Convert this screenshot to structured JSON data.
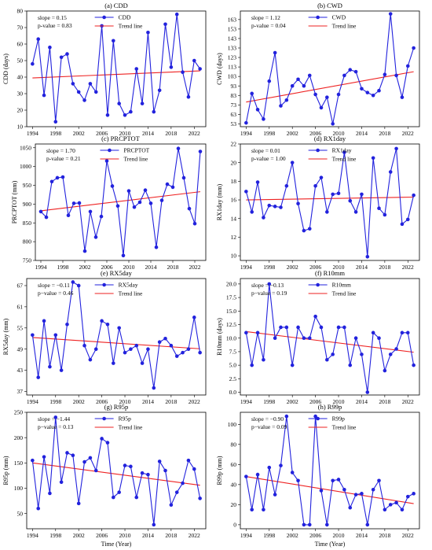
{
  "figure": {
    "x_axis_title": "Time (Year)"
  },
  "colors": {
    "series": "#2222dd",
    "trend": "#ee2222"
  },
  "chart_data": [
    {
      "type": "line",
      "panel": "(a) CDD",
      "ylabel": "CDD (days)",
      "xlabel": "",
      "series_name": "CDD",
      "trend_name": "Trend line",
      "slope_text": "slope = 0.15",
      "p_text": "p-value = 0.83",
      "xlim": [
        1993,
        2024
      ],
      "ylim": [
        10,
        80
      ],
      "xticks": [
        1994,
        1998,
        2002,
        2006,
        2010,
        2014,
        2018,
        2022
      ],
      "yticks": [
        10,
        20,
        30,
        40,
        50,
        60,
        70,
        80
      ],
      "x": [
        1994,
        1995,
        1996,
        1997,
        1998,
        1999,
        2000,
        2001,
        2002,
        2003,
        2004,
        2005,
        2006,
        2007,
        2008,
        2009,
        2010,
        2011,
        2012,
        2013,
        2014,
        2015,
        2016,
        2017,
        2018,
        2019,
        2020,
        2021,
        2022,
        2023
      ],
      "values": [
        48,
        63,
        29,
        58,
        13,
        52,
        54,
        36,
        31,
        26,
        36,
        31,
        71,
        17,
        62,
        24,
        17,
        19,
        45,
        24,
        67,
        19,
        32,
        72,
        46,
        78,
        43,
        28,
        50,
        45
      ],
      "trend": [
        39.5,
        43.8
      ]
    },
    {
      "type": "line",
      "panel": "(b) CWD",
      "ylabel": "CWD (days)",
      "xlabel": "",
      "series_name": "CWD",
      "trend_name": "Trend line",
      "slope_text": "slope = 1.12",
      "p_text": "p-value = 0.04",
      "xlim": [
        1993,
        2024
      ],
      "ylim": [
        50,
        172
      ],
      "xticks": [
        1994,
        1998,
        2002,
        2006,
        2010,
        2014,
        2018,
        2022
      ],
      "yticks": [
        53,
        63,
        73,
        83,
        93,
        103,
        113,
        123,
        133,
        143,
        153,
        163
      ],
      "x": [
        1994,
        1995,
        1996,
        1997,
        1998,
        1999,
        2000,
        2001,
        2002,
        2003,
        2004,
        2005,
        2006,
        2007,
        2008,
        2009,
        2010,
        2011,
        2012,
        2013,
        2014,
        2015,
        2016,
        2017,
        2018,
        2019,
        2020,
        2021,
        2022,
        2023
      ],
      "values": [
        54,
        85,
        68,
        58,
        98,
        128,
        72,
        78,
        93,
        100,
        93,
        104,
        84,
        70,
        81,
        53,
        84,
        104,
        110,
        108,
        90,
        86,
        83,
        88,
        105,
        169,
        104,
        81,
        114,
        133
      ],
      "trend": [
        76,
        108
      ]
    },
    {
      "type": "line",
      "panel": "(c) PRCPTOT",
      "ylabel": "PRCPTOT (mm)",
      "xlabel": "",
      "series_name": "PRCPTOT",
      "trend_name": "Trend line",
      "slope_text": "slope = 1.70",
      "p_text": "p-value = 0.21",
      "xlim": [
        1993,
        2024
      ],
      "ylim": [
        750,
        1060
      ],
      "xticks": [
        1994,
        1998,
        2002,
        2006,
        2010,
        2014,
        2018,
        2022
      ],
      "yticks": [
        750,
        800,
        850,
        900,
        950,
        1000,
        1050
      ],
      "x": [
        1994,
        1995,
        1996,
        1997,
        1998,
        1999,
        2000,
        2001,
        2002,
        2003,
        2004,
        2005,
        2006,
        2007,
        2008,
        2009,
        2010,
        2011,
        2012,
        2013,
        2014,
        2015,
        2016,
        2017,
        2018,
        2019,
        2020,
        2021,
        2022,
        2023
      ],
      "values": [
        880,
        865,
        960,
        970,
        972,
        870,
        902,
        903,
        775,
        880,
        812,
        867,
        1015,
        948,
        895,
        763,
        935,
        892,
        905,
        937,
        902,
        785,
        910,
        953,
        945,
        1048,
        970,
        888,
        848,
        1040
      ],
      "trend": [
        882,
        933
      ]
    },
    {
      "type": "line",
      "panel": "(d) RX1day",
      "ylabel": "RX1day (mm)",
      "xlabel": "",
      "series_name": "RX1day",
      "trend_name": "Trend line",
      "slope_text": "slope = 0.01",
      "p_text": "p-value = 1.00",
      "xlim": [
        1993,
        2024
      ],
      "ylim": [
        9.5,
        22
      ],
      "xticks": [
        1994,
        1998,
        2002,
        2006,
        2010,
        2014,
        2018,
        2022
      ],
      "yticks": [
        10,
        12,
        14,
        16,
        18,
        20,
        22
      ],
      "x": [
        1994,
        1995,
        1996,
        1997,
        1998,
        1999,
        2000,
        2001,
        2002,
        2003,
        2004,
        2005,
        2006,
        2007,
        2008,
        2009,
        2010,
        2011,
        2012,
        2013,
        2014,
        2015,
        2016,
        2017,
        2018,
        2019,
        2020,
        2021,
        2022,
        2023
      ],
      "values": [
        16.9,
        14.7,
        17.9,
        14.1,
        15.4,
        15.3,
        15.2,
        17.5,
        20.0,
        15.6,
        12.7,
        12.9,
        17.5,
        18.4,
        14.7,
        16.6,
        16.7,
        21.1,
        15.9,
        14.7,
        16.6,
        9.9,
        20.5,
        15.1,
        14.4,
        19.0,
        21.5,
        13.4,
        13.9,
        16.5
      ],
      "trend": [
        16.0,
        16.3
      ]
    },
    {
      "type": "line",
      "panel": "(e) RX5day",
      "ylabel": "RX5day (mm)",
      "xlabel": "",
      "series_name": "RX5day",
      "trend_name": "Trend line",
      "slope_text": "slope = −0.11",
      "p_text": "p−value = 0.46",
      "xlim": [
        1993,
        2024
      ],
      "ylim": [
        36,
        69
      ],
      "xticks": [
        1994,
        1998,
        2002,
        2006,
        2010,
        2014,
        2018,
        2022
      ],
      "yticks": [
        37,
        43,
        49,
        55,
        61,
        67
      ],
      "x": [
        1994,
        1995,
        1996,
        1997,
        1998,
        1999,
        2000,
        2001,
        2002,
        2003,
        2004,
        2005,
        2006,
        2007,
        2008,
        2009,
        2010,
        2011,
        2012,
        2013,
        2014,
        2015,
        2016,
        2017,
        2018,
        2019,
        2020,
        2021,
        2022,
        2023
      ],
      "values": [
        53,
        41,
        57,
        44,
        53,
        43,
        56,
        68,
        67,
        50,
        46,
        49,
        57,
        56,
        45,
        55,
        48,
        49,
        50,
        45,
        49,
        38,
        51,
        52,
        50,
        47,
        48,
        49,
        58,
        48
      ],
      "trend": [
        52.3,
        49.1
      ]
    },
    {
      "type": "line",
      "panel": "(f) R10mm",
      "ylabel": "R10mm (days)",
      "xlabel": "",
      "series_name": "R10mm",
      "trend_name": "Trend line",
      "slope_text": "slope = −0.13",
      "p_text": "p−value = 0.19",
      "xlim": [
        1993,
        2024
      ],
      "ylim": [
        -0.5,
        21
      ],
      "xticks": [
        1994,
        1998,
        2002,
        2006,
        2010,
        2014,
        2018,
        2022
      ],
      "yticks": [
        0.0,
        2.5,
        5.0,
        7.5,
        10.0,
        12.5,
        15.0,
        17.5,
        20.0
      ],
      "ytick_labels": [
        "0.0",
        "2.5",
        "5.0",
        "7.5",
        "10.0",
        "12.5",
        "15.0",
        "17.5",
        "20.0"
      ],
      "x": [
        1994,
        1995,
        1996,
        1997,
        1998,
        1999,
        2000,
        2001,
        2002,
        2003,
        2004,
        2005,
        2006,
        2007,
        2008,
        2009,
        2010,
        2011,
        2012,
        2013,
        2014,
        2015,
        2016,
        2017,
        2018,
        2019,
        2020,
        2021,
        2022,
        2023
      ],
      "values": [
        11,
        5,
        11,
        6,
        20,
        10,
        12,
        12,
        5,
        12,
        10,
        10,
        14,
        12,
        6,
        7,
        12,
        12,
        5,
        10,
        7,
        0,
        11,
        10,
        4,
        7,
        8,
        11,
        11,
        5
      ],
      "trend": [
        11.2,
        7.4
      ]
    },
    {
      "type": "line",
      "panel": "(g) R95p",
      "ylabel": "R95p (mm)",
      "xlabel": "Time (Year)",
      "series_name": "R95p",
      "trend_name": "Trend line",
      "slope_text": "slope = −1.44",
      "p_text": "p−value = 0.13",
      "xlim": [
        1993,
        2024
      ],
      "ylim": [
        20,
        250
      ],
      "xticks": [
        1994,
        1998,
        2002,
        2006,
        2010,
        2014,
        2018,
        2022
      ],
      "yticks": [
        50,
        100,
        150,
        200,
        250
      ],
      "x": [
        1994,
        1995,
        1996,
        1997,
        1998,
        1999,
        2000,
        2001,
        2002,
        2003,
        2004,
        2005,
        2006,
        2007,
        2008,
        2009,
        2010,
        2011,
        2012,
        2013,
        2014,
        2015,
        2016,
        2017,
        2018,
        2019,
        2020,
        2021,
        2022,
        2023
      ],
      "values": [
        155,
        60,
        162,
        90,
        240,
        112,
        170,
        165,
        70,
        152,
        160,
        135,
        198,
        190,
        82,
        92,
        145,
        143,
        82,
        130,
        127,
        28,
        153,
        135,
        67,
        92,
        110,
        155,
        138,
        80
      ],
      "trend": [
        150,
        106
      ]
    },
    {
      "type": "line",
      "panel": "(h) R99p",
      "ylabel": "R99p (mm)",
      "xlabel": "Time (Year)",
      "series_name": "R99p",
      "trend_name": "Trend line",
      "slope_text": "slope = −0.90",
      "p_text": "p−value = 0.09",
      "xlim": [
        1993,
        2024
      ],
      "ylim": [
        -4,
        112
      ],
      "xticks": [
        1994,
        1998,
        2002,
        2006,
        2010,
        2014,
        2018,
        2022
      ],
      "yticks": [
        0,
        20,
        40,
        60,
        80,
        100
      ],
      "x": [
        1994,
        1995,
        1996,
        1997,
        1998,
        1999,
        2000,
        2001,
        2002,
        2003,
        2004,
        2005,
        2006,
        2007,
        2008,
        2009,
        2010,
        2011,
        2012,
        2013,
        2014,
        2015,
        2016,
        2017,
        2018,
        2019,
        2020,
        2021,
        2022,
        2023
      ],
      "values": [
        48,
        15,
        50,
        15,
        57,
        30,
        59,
        108,
        52,
        44,
        0,
        0,
        108,
        34,
        0,
        44,
        45,
        35,
        17,
        30,
        31,
        0,
        35,
        44,
        15,
        20,
        22,
        15,
        28,
        31
      ],
      "trend": [
        48,
        21
      ]
    }
  ]
}
